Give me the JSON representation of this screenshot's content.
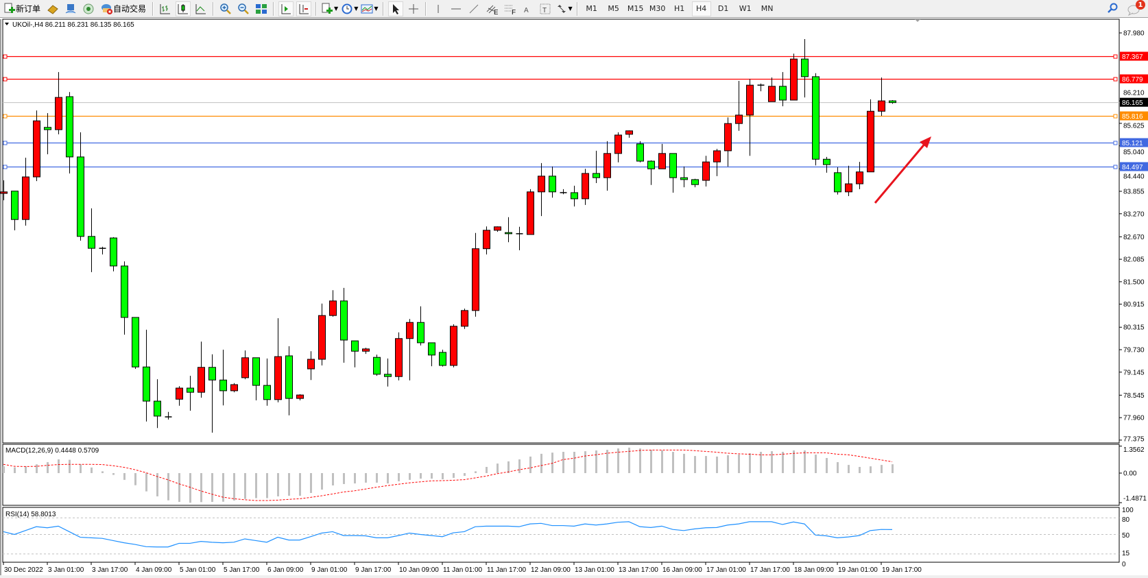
{
  "toolbar": {
    "new_order_label": "新订单",
    "auto_trading_label": "自动交易",
    "icons": [
      "new-order-icon",
      "gold-icon",
      "market-watch-icon",
      "signal-icon",
      "auto-trading-icon",
      "bar-chart-icon",
      "candlestick-icon",
      "line-chart-icon",
      "zoom-in-icon",
      "zoom-out-icon",
      "tile-windows-icon",
      "auto-scroll-icon",
      "chart-shift-icon",
      "new-chart-icon",
      "periods-icon",
      "templates-icon",
      "cursor-icon",
      "crosshair-icon",
      "vertical-line-icon",
      "horizontal-line-icon",
      "trendline-icon",
      "channel-icon",
      "fibonacci-icon",
      "text-icon",
      "text-label-icon",
      "arrows-icon"
    ],
    "timeframes": [
      "M1",
      "M5",
      "M15",
      "M30",
      "H1",
      "H4",
      "D1",
      "W1",
      "MN"
    ],
    "selected_timeframe": "H4",
    "notification_count": "1"
  },
  "chart": {
    "symbol_info": "UKOil-,H4  86.211 86.231 86.135 86.165",
    "macd_label": "MACD(12,26,9) 0.4448 0.5709",
    "rsi_label": "RSI(14) 58.8013",
    "colors": {
      "bull": "#ff0000",
      "bear": "#00ff00",
      "macd_hist": "#c0c0c0",
      "signal": "#ff0000",
      "rsi": "#1e90ff"
    },
    "levels": [
      {
        "price": "87.367",
        "color": "#ff0000"
      },
      {
        "price": "86.779",
        "color": "#ff0000"
      },
      {
        "price": "85.816",
        "color": "#ff8c00"
      },
      {
        "price": "85.121",
        "color": "#4169e1"
      },
      {
        "price": "84.497",
        "color": "#4169e1"
      }
    ],
    "current_price": {
      "price": "86.165",
      "color": "#000000",
      "line_color": "#c0c0c0"
    },
    "arrow_color": "#e8141e"
  },
  "chart_data": {
    "type": "candlestick",
    "ylim": [
      77.3,
      88.34
    ],
    "price_ticks": [
      "87.980",
      "86.210",
      "85.625",
      "85.040",
      "84.440",
      "83.855",
      "83.270",
      "82.670",
      "82.085",
      "81.500",
      "80.915",
      "80.315",
      "79.730",
      "79.145",
      "78.545",
      "77.960",
      "77.375"
    ],
    "time_labels": [
      {
        "index": 0,
        "label": "30 Dec 2022"
      },
      {
        "index": 4,
        "label": "3 Jan 01:00"
      },
      {
        "index": 8,
        "label": "3 Jan 17:00"
      },
      {
        "index": 12,
        "label": "4 Jan 09:00"
      },
      {
        "index": 16,
        "label": "5 Jan 01:00"
      },
      {
        "index": 20,
        "label": "5 Jan 17:00"
      },
      {
        "index": 24,
        "label": "6 Jan 09:00"
      },
      {
        "index": 28,
        "label": "9 Jan 01:00"
      },
      {
        "index": 32,
        "label": "9 Jan 17:00"
      },
      {
        "index": 36,
        "label": "10 Jan 09:00"
      },
      {
        "index": 40,
        "label": "11 Jan 01:00"
      },
      {
        "index": 44,
        "label": "11 Jan 17:00"
      },
      {
        "index": 48,
        "label": "12 Jan 09:00"
      },
      {
        "index": 52,
        "label": "13 Jan 01:00"
      },
      {
        "index": 56,
        "label": "13 Jan 17:00"
      },
      {
        "index": 60,
        "label": "16 Jan 09:00"
      },
      {
        "index": 64,
        "label": "17 Jan 01:00"
      },
      {
        "index": 68,
        "label": "17 Jan 17:00"
      },
      {
        "index": 72,
        "label": "18 Jan 09:00"
      },
      {
        "index": 76,
        "label": "19 Jan 01:00"
      },
      {
        "index": 80,
        "label": "19 Jan 17:00"
      }
    ],
    "ohlc": [
      [
        83.8,
        84.14,
        83.62,
        83.84
      ],
      [
        83.86,
        83.86,
        82.84,
        83.12
      ],
      [
        83.12,
        84.73,
        82.96,
        84.23
      ],
      [
        84.23,
        85.96,
        84.12,
        85.69
      ],
      [
        85.52,
        85.89,
        84.82,
        85.46
      ],
      [
        85.46,
        86.96,
        85.34,
        86.3
      ],
      [
        86.32,
        86.44,
        84.32,
        84.75
      ],
      [
        84.75,
        85.39,
        82.57,
        82.68
      ],
      [
        82.68,
        83.41,
        81.75,
        82.37
      ],
      [
        82.37,
        82.41,
        82.21,
        82.36
      ],
      [
        82.64,
        82.66,
        81.77,
        81.91
      ],
      [
        81.91,
        82.03,
        80.12,
        80.57
      ],
      [
        80.57,
        80.57,
        79.23,
        79.28
      ],
      [
        79.28,
        80.25,
        77.86,
        78.39
      ],
      [
        78.39,
        78.96,
        77.69,
        78.0
      ],
      [
        77.98,
        78.11,
        77.91,
        77.98
      ],
      [
        78.44,
        78.78,
        78.27,
        78.73
      ],
      [
        78.73,
        79.05,
        78.14,
        78.62
      ],
      [
        78.62,
        79.94,
        78.48,
        79.27
      ],
      [
        79.27,
        79.61,
        77.57,
        78.94
      ],
      [
        78.94,
        79.73,
        78.28,
        78.66
      ],
      [
        78.66,
        78.86,
        78.62,
        78.82
      ],
      [
        79.0,
        79.71,
        78.96,
        79.52
      ],
      [
        79.52,
        79.52,
        78.41,
        78.8
      ],
      [
        78.8,
        79.5,
        78.27,
        78.43
      ],
      [
        78.43,
        80.55,
        78.36,
        79.55
      ],
      [
        79.57,
        79.82,
        78.02,
        78.46
      ],
      [
        78.46,
        78.57,
        78.41,
        78.55
      ],
      [
        79.23,
        79.69,
        78.94,
        79.48
      ],
      [
        79.48,
        80.93,
        79.32,
        80.62
      ],
      [
        80.62,
        81.28,
        80.59,
        81.0
      ],
      [
        81.0,
        81.34,
        79.39,
        79.98
      ],
      [
        79.96,
        79.96,
        79.27,
        79.69
      ],
      [
        79.69,
        79.78,
        79.62,
        79.75
      ],
      [
        79.53,
        79.6,
        79.05,
        79.09
      ],
      [
        79.09,
        79.5,
        78.77,
        79.03
      ],
      [
        79.03,
        80.18,
        78.93,
        80.02
      ],
      [
        80.02,
        80.53,
        78.93,
        80.44
      ],
      [
        80.44,
        80.86,
        79.84,
        79.91
      ],
      [
        79.91,
        79.91,
        79.3,
        79.59
      ],
      [
        79.66,
        79.73,
        79.29,
        79.32
      ],
      [
        79.32,
        80.39,
        79.27,
        80.34
      ],
      [
        80.34,
        80.8,
        80.27,
        80.75
      ],
      [
        80.75,
        82.77,
        80.59,
        82.36
      ],
      [
        82.36,
        82.94,
        82.21,
        82.84
      ],
      [
        82.84,
        82.94,
        82.8,
        82.93
      ],
      [
        82.78,
        83.18,
        82.53,
        82.75
      ],
      [
        82.75,
        82.93,
        82.32,
        82.75
      ],
      [
        82.73,
        83.91,
        82.73,
        83.84
      ],
      [
        83.84,
        84.59,
        83.21,
        84.25
      ],
      [
        84.25,
        84.5,
        83.69,
        83.84
      ],
      [
        83.82,
        83.91,
        83.78,
        83.82
      ],
      [
        83.82,
        84.0,
        83.46,
        83.66
      ],
      [
        83.66,
        84.44,
        83.5,
        84.32
      ],
      [
        84.32,
        84.91,
        84.07,
        84.21
      ],
      [
        84.21,
        85.16,
        83.87,
        84.84
      ],
      [
        84.84,
        85.39,
        84.61,
        85.32
      ],
      [
        85.34,
        85.44,
        85.25,
        85.43
      ],
      [
        85.09,
        85.16,
        84.61,
        84.64
      ],
      [
        84.64,
        84.66,
        84.02,
        84.44
      ],
      [
        84.44,
        85.09,
        84.44,
        84.84
      ],
      [
        84.84,
        84.84,
        83.82,
        84.21
      ],
      [
        84.21,
        84.5,
        83.96,
        84.16
      ],
      [
        84.16,
        84.18,
        83.96,
        84.03
      ],
      [
        84.14,
        84.78,
        83.98,
        84.62
      ],
      [
        84.62,
        84.96,
        84.25,
        84.91
      ],
      [
        84.91,
        85.78,
        84.5,
        85.62
      ],
      [
        85.62,
        86.73,
        85.43,
        85.84
      ],
      [
        85.84,
        86.78,
        84.78,
        86.62
      ],
      [
        86.62,
        86.66,
        86.46,
        86.62
      ],
      [
        86.19,
        86.82,
        86.19,
        86.59
      ],
      [
        86.59,
        86.96,
        86.07,
        86.23
      ],
      [
        86.23,
        87.44,
        86.23,
        87.3
      ],
      [
        87.3,
        87.82,
        86.3,
        86.84
      ],
      [
        86.84,
        86.93,
        84.53,
        84.69
      ],
      [
        84.69,
        84.75,
        84.34,
        84.55
      ],
      [
        84.34,
        84.48,
        83.77,
        83.84
      ],
      [
        83.84,
        84.52,
        83.73,
        84.05
      ],
      [
        84.05,
        84.62,
        83.91,
        84.36
      ],
      [
        84.36,
        86.25,
        84.36,
        85.94
      ],
      [
        85.94,
        86.82,
        85.82,
        86.21
      ],
      [
        86.211,
        86.231,
        86.135,
        86.165
      ]
    ],
    "macd": {
      "ticks": [
        "1.3562",
        "0.00",
        "-1.4871"
      ],
      "histogram": [
        0.34,
        0.29,
        0.34,
        0.44,
        0.55,
        0.69,
        0.67,
        0.44,
        0.28,
        0.09,
        -0.09,
        -0.34,
        -0.61,
        -0.92,
        -1.17,
        -1.37,
        -1.45,
        -1.49,
        -1.46,
        -1.45,
        -1.44,
        -1.38,
        -1.3,
        -1.26,
        -1.26,
        -1.17,
        -1.14,
        -1.14,
        -1.0,
        -0.83,
        -0.62,
        -0.55,
        -0.52,
        -0.48,
        -0.48,
        -0.52,
        -0.41,
        -0.34,
        -0.28,
        -0.28,
        -0.31,
        -0.24,
        -0.14,
        0.09,
        0.31,
        0.48,
        0.59,
        0.69,
        0.83,
        0.97,
        1.03,
        1.07,
        1.07,
        1.1,
        1.14,
        1.17,
        1.24,
        1.28,
        1.24,
        1.17,
        1.14,
        1.07,
        0.97,
        0.86,
        0.86,
        0.83,
        0.9,
        0.93,
        1.0,
        1.07,
        1.1,
        1.07,
        1.14,
        1.14,
        0.93,
        0.76,
        0.55,
        0.41,
        0.31,
        0.34,
        0.41,
        0.4448
      ],
      "signal": [
        0.44,
        0.34,
        0.33,
        0.34,
        0.39,
        0.43,
        0.44,
        0.44,
        0.44,
        0.43,
        0.37,
        0.29,
        0.17,
        0.02,
        -0.17,
        -0.34,
        -0.54,
        -0.71,
        -0.9,
        -1.06,
        -1.21,
        -1.29,
        -1.34,
        -1.38,
        -1.38,
        -1.36,
        -1.32,
        -1.29,
        -1.22,
        -1.14,
        -1.05,
        -0.95,
        -0.89,
        -0.8,
        -0.71,
        -0.63,
        -0.56,
        -0.49,
        -0.44,
        -0.39,
        -0.38,
        -0.36,
        -0.33,
        -0.24,
        -0.15,
        -0.03,
        0.06,
        0.17,
        0.26,
        0.38,
        0.49,
        0.68,
        0.75,
        0.86,
        0.92,
        1.0,
        1.05,
        1.09,
        1.14,
        1.16,
        1.16,
        1.16,
        1.16,
        1.13,
        1.09,
        1.05,
        1.0,
        0.97,
        0.95,
        0.92,
        0.92,
        0.95,
        0.99,
        1.02,
        1.02,
        1.02,
        0.95,
        0.92,
        0.84,
        0.75,
        0.66,
        0.5709
      ]
    },
    "rsi": {
      "ticks": [
        "100",
        "80",
        "50",
        "15",
        "0"
      ],
      "levels": [
        80,
        50,
        15
      ],
      "values": [
        55,
        50,
        57,
        64,
        62,
        65,
        55,
        45,
        44,
        43,
        39,
        35,
        32,
        28,
        27.5,
        27.5,
        34,
        34,
        37.5,
        36,
        35,
        36,
        42,
        39,
        36,
        45,
        40,
        40,
        46,
        52.5,
        55,
        48,
        48,
        47.5,
        44,
        44,
        48,
        52.5,
        50,
        48,
        46,
        53,
        55,
        64,
        65,
        65,
        65,
        64,
        69,
        70,
        66,
        66,
        65,
        69,
        67,
        69,
        72,
        73,
        64,
        62.5,
        65,
        59,
        57,
        60,
        62,
        62.5,
        67,
        69,
        73,
        73,
        73,
        68,
        72.5,
        69,
        49,
        47.5,
        44,
        45.5,
        48,
        57,
        59,
        58.8013
      ]
    }
  }
}
